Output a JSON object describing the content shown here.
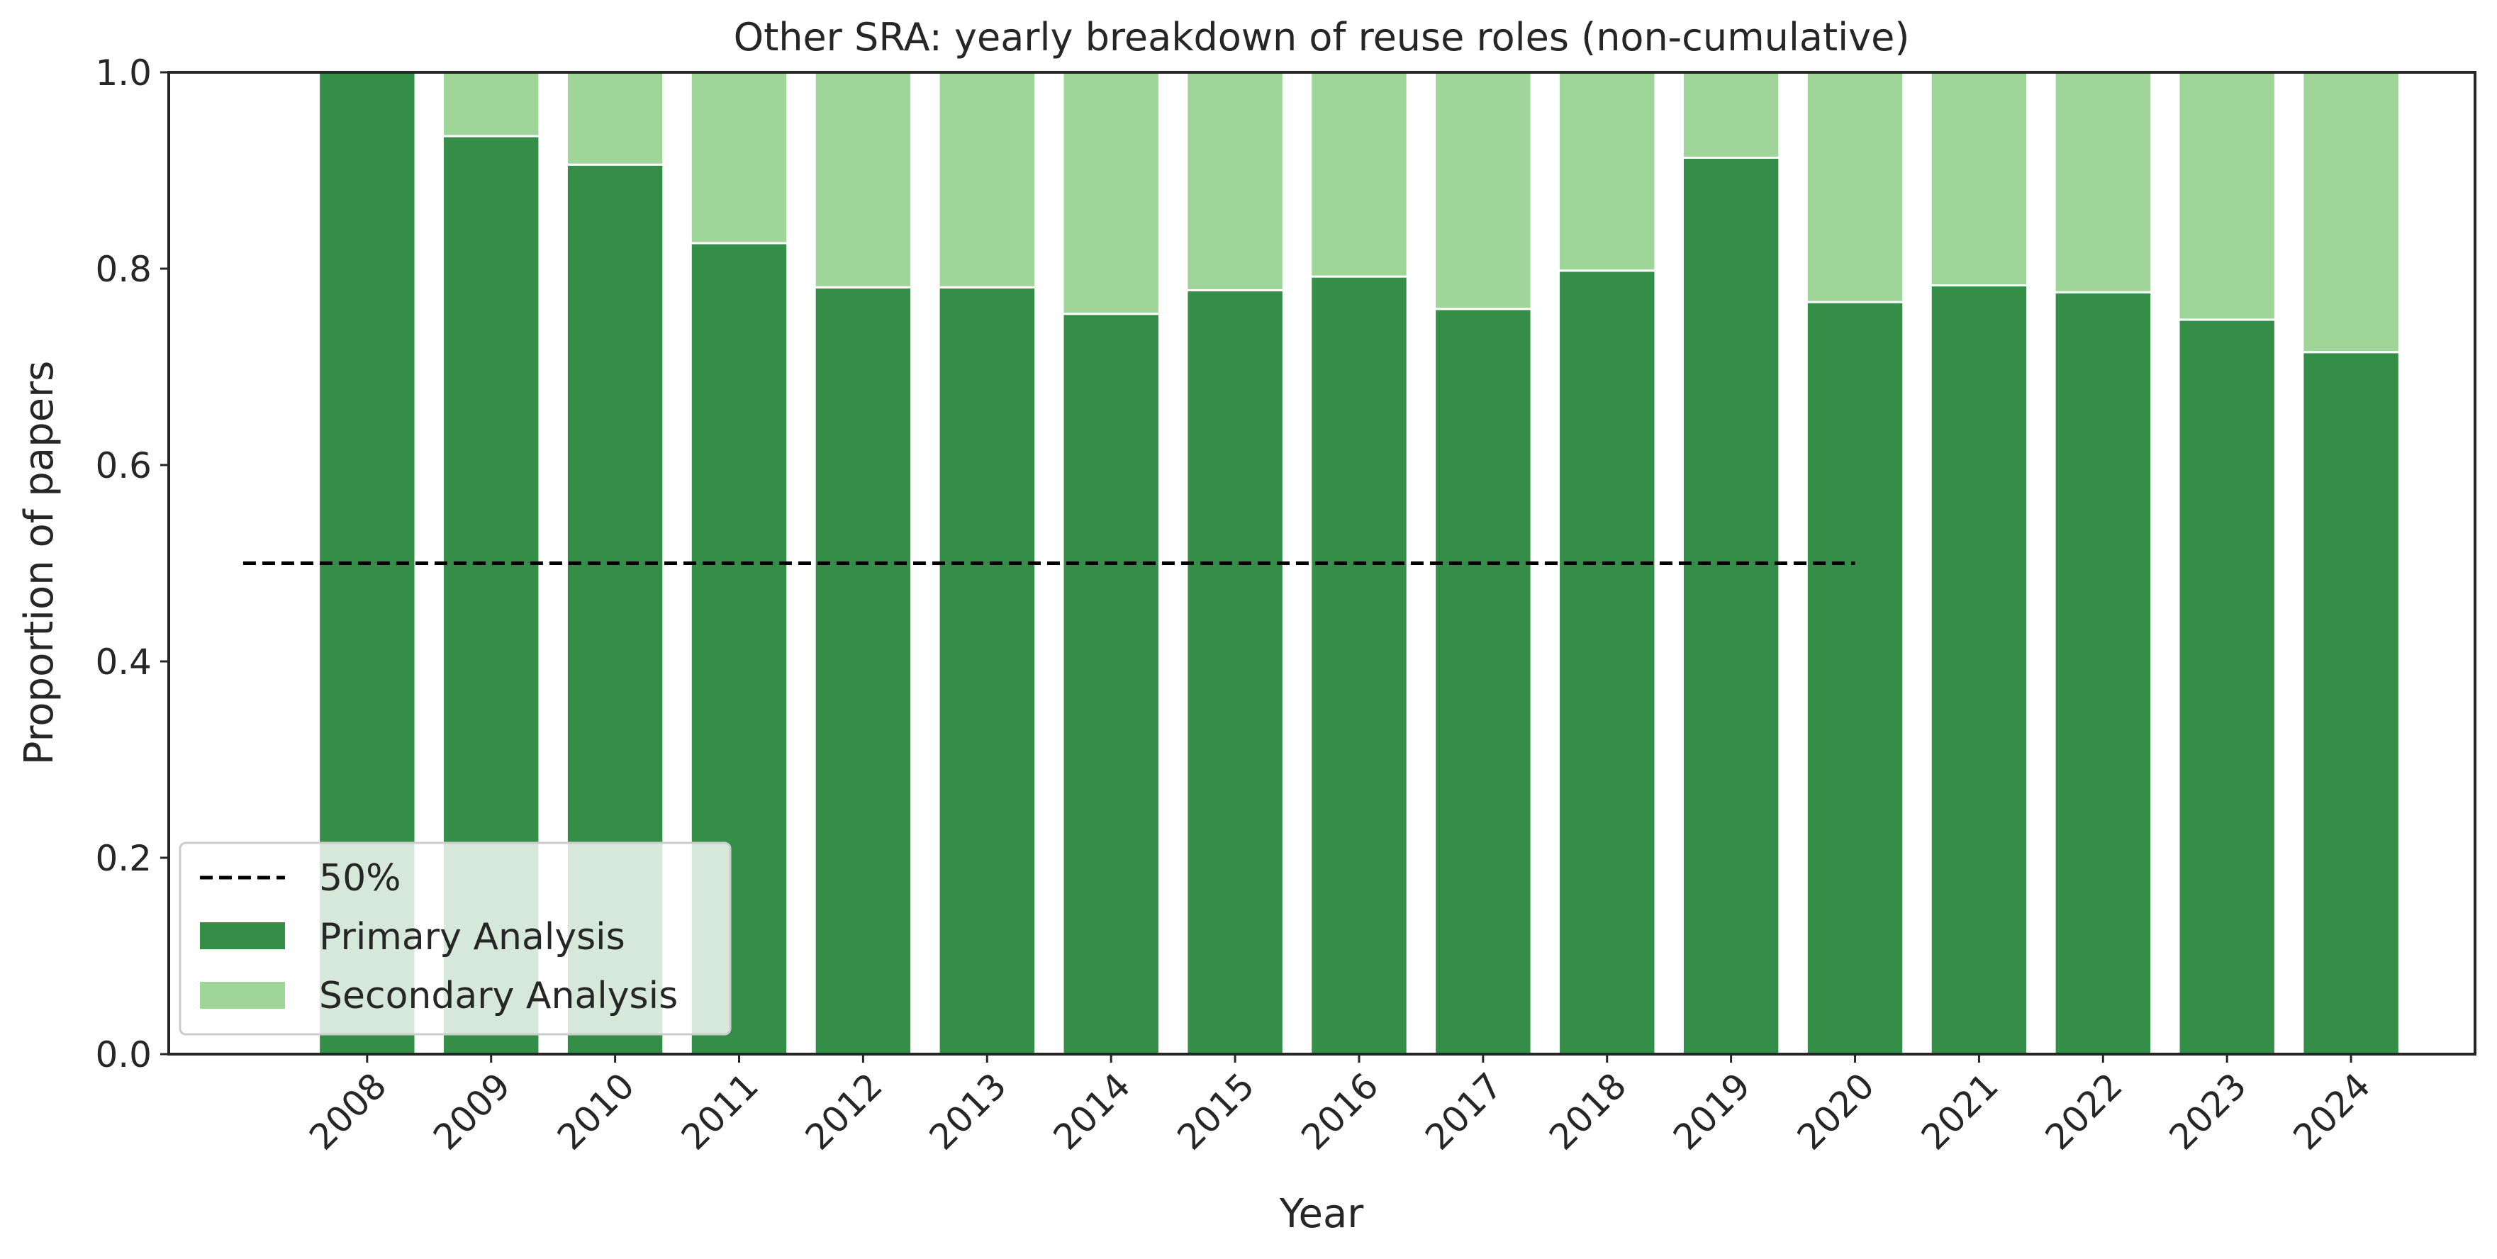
{
  "chart_data": {
    "type": "bar",
    "stacked": true,
    "title": "Other SRA: yearly breakdown of reuse roles (non-cumulative)",
    "xlabel": "Year",
    "ylabel": "Proportion of papers",
    "categories": [
      "2008",
      "2009",
      "2010",
      "2011",
      "2012",
      "2013",
      "2014",
      "2015",
      "2016",
      "2017",
      "2018",
      "2019",
      "2020",
      "2021",
      "2022",
      "2023",
      "2024"
    ],
    "series": [
      {
        "name": "Primary Analysis",
        "color": "#358e48",
        "values": [
          1.0,
          0.935,
          0.906,
          0.826,
          0.781,
          0.781,
          0.754,
          0.778,
          0.792,
          0.759,
          0.798,
          0.913,
          0.766,
          0.783,
          0.776,
          0.748,
          0.715
        ]
      },
      {
        "name": "Secondary Analysis",
        "color": "#9fd599",
        "values": [
          0.0,
          0.065,
          0.094,
          0.174,
          0.219,
          0.219,
          0.246,
          0.222,
          0.208,
          0.241,
          0.202,
          0.087,
          0.234,
          0.217,
          0.224,
          0.252,
          0.285
        ]
      }
    ],
    "reference_line": {
      "name": "50%",
      "y": 0.5,
      "x_start": "2007",
      "x_end": "2020",
      "style": "dashed",
      "color": "#000000"
    },
    "ylim": [
      0.0,
      1.0
    ],
    "yticks": [
      0.0,
      0.2,
      0.4,
      0.6,
      0.8,
      1.0
    ],
    "ytick_labels": [
      "0.0",
      "0.2",
      "0.4",
      "0.6",
      "0.8",
      "1.0"
    ],
    "grid": false,
    "legend_position": "lower-left",
    "legend": [
      "50%",
      "Primary Analysis",
      "Secondary Analysis"
    ]
  }
}
